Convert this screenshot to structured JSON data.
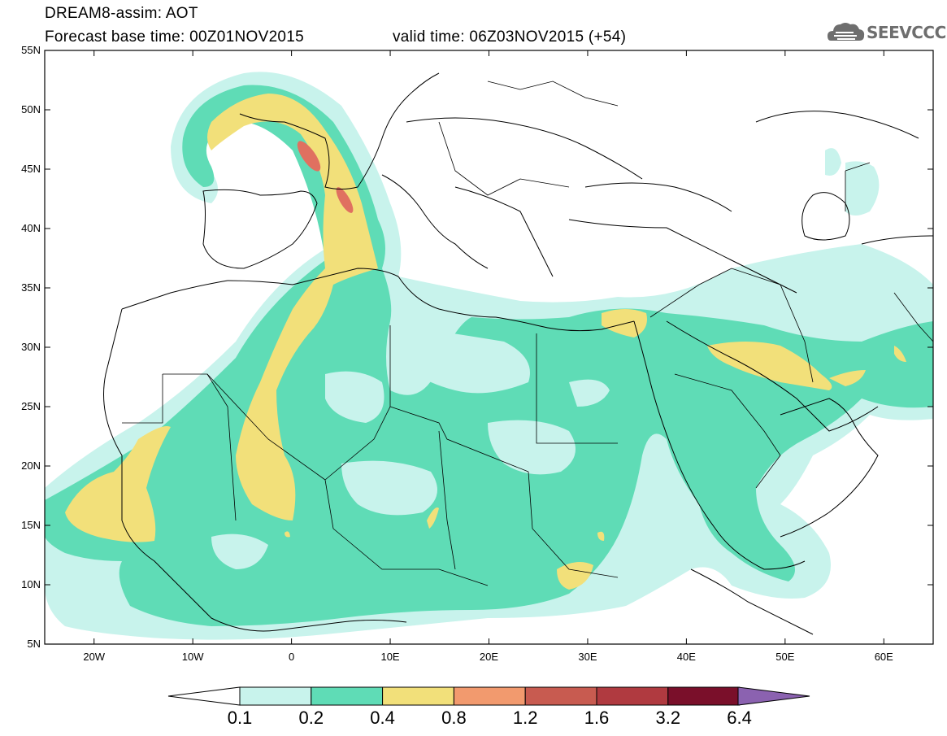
{
  "title": {
    "line1": "DREAM8-assim: AOT",
    "line2_left": "Forecast base time: 00Z01NOV2015",
    "line2_right": "valid time: 06Z03NOV2015 (+54)"
  },
  "logo": {
    "text": "SEEVCCC",
    "icon": "cloud-icon"
  },
  "axes": {
    "lat_labels": [
      "55N",
      "50N",
      "45N",
      "40N",
      "35N",
      "30N",
      "25N",
      "20N",
      "15N",
      "10N",
      "5N"
    ],
    "lon_labels": [
      "20W",
      "10W",
      "0",
      "10E",
      "20E",
      "30E",
      "40E",
      "50E",
      "60E"
    ],
    "lat_range": [
      5,
      55
    ],
    "lon_range": [
      -25,
      65
    ]
  },
  "colorbar": {
    "labels": [
      "0.1",
      "0.2",
      "0.4",
      "0.8",
      "1.2",
      "1.6",
      "3.2",
      "6.4"
    ],
    "colors": [
      "#c8f3ec",
      "#5fdcb6",
      "#f2e07a",
      "#f29a6e",
      "#c85b50",
      "#b03a40",
      "#7a0f2a",
      "#4a3a28",
      "#8b62b0"
    ]
  },
  "chart_data": {
    "type": "heatmap",
    "title": "DREAM8-assim: AOT",
    "variable": "AOT",
    "units_levels": [
      0.1,
      0.2,
      0.4,
      0.8,
      1.2,
      1.6,
      3.2,
      6.4
    ],
    "xlim": [
      -25,
      65
    ],
    "ylim": [
      5,
      55
    ]
  }
}
